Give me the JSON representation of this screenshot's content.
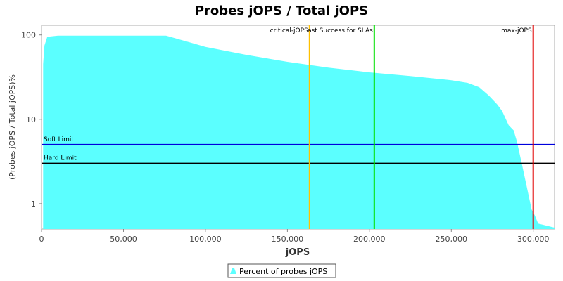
{
  "chart_data": {
    "type": "area",
    "title": "Probes jOPS / Total jOPS",
    "xlabel": "jOPS",
    "ylabel": "(Probes jOPS / Total jOPS)%",
    "xlim": [
      0,
      313000
    ],
    "ylim": [
      0.5,
      130
    ],
    "yscale": "log",
    "x_ticks": [
      0,
      50000,
      100000,
      150000,
      200000,
      250000,
      300000
    ],
    "x_tick_labels": [
      "0",
      "50,000",
      "100,000",
      "150,000",
      "200,000",
      "250,000",
      "300,000"
    ],
    "y_ticks": [
      1,
      10,
      100
    ],
    "y_tick_labels": [
      "1",
      "10",
      "100"
    ],
    "grid": false,
    "legend_position": "bottom-center",
    "series": [
      {
        "name": "Percent of probes jOPS",
        "color": "#5BFFFF",
        "x": [
          1000,
          1800,
          3500,
          10000,
          20000,
          40000,
          60000,
          76000,
          90000,
          100000,
          125000,
          150000,
          175000,
          200000,
          225000,
          250000,
          260000,
          267000,
          273000,
          278000,
          281000,
          285000,
          288000,
          290000,
          293000,
          296000,
          299000,
          301000,
          303000,
          313000
        ],
        "y": [
          45,
          75,
          95,
          98,
          98,
          98,
          98,
          98,
          82,
          72,
          58,
          48,
          41,
          36,
          32.5,
          29,
          27,
          24,
          19,
          15,
          12.5,
          8.5,
          7.4,
          5.5,
          3.0,
          1.6,
          0.85,
          0.72,
          0.58,
          0.52
        ]
      }
    ],
    "vertical_lines": [
      {
        "label": "critical-jOPS",
        "x": 163500,
        "color": "#FFC000"
      },
      {
        "label": "Last Success for SLAs",
        "x": 203000,
        "color": "#00E000"
      },
      {
        "label": "max-jOPS",
        "x": 300000,
        "color": "#E00000"
      }
    ],
    "horizontal_lines": [
      {
        "label": "Soft Limit",
        "y": 5.0,
        "color": "#0000DD"
      },
      {
        "label": "Hard Limit",
        "y": 3.0,
        "color": "#000000"
      }
    ]
  }
}
